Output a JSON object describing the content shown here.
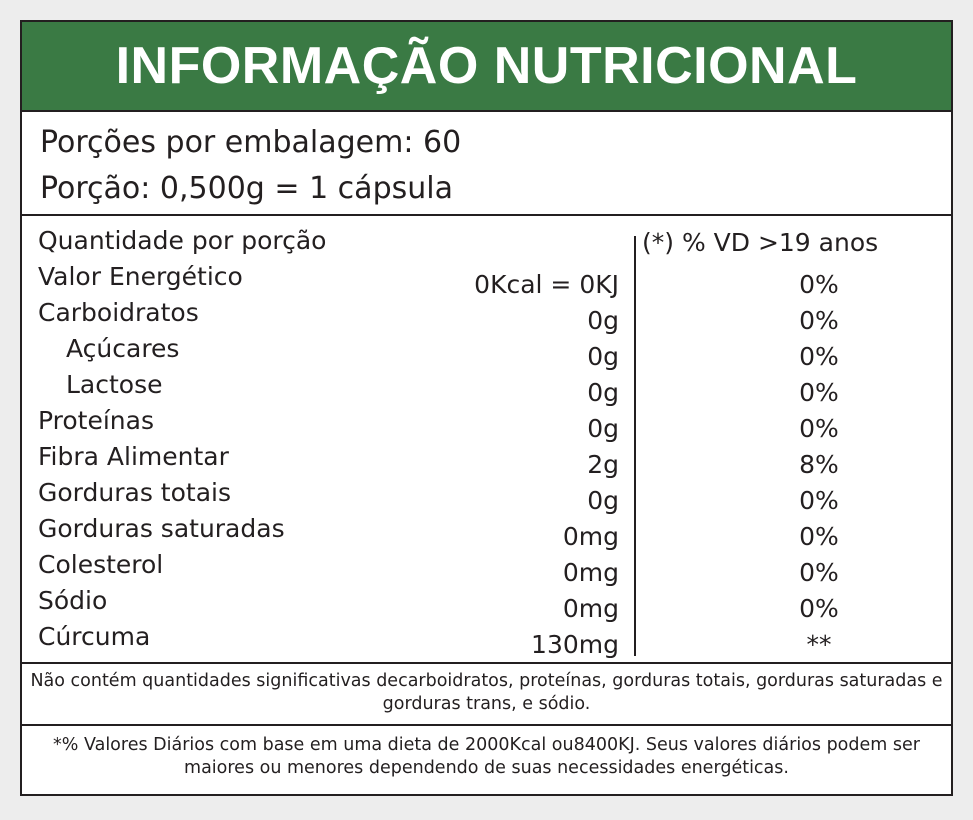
{
  "title": "INFORMAÇÃO NUTRICIONAL",
  "servings_per_package": "Porções por embalagem: 60",
  "serving_size": "Porção: 0,500g = 1 cápsula",
  "table_header": {
    "left": "Quantidade por porção",
    "right": "(*) % VD  >19 anos"
  },
  "rows": [
    {
      "name": "Valor Energético",
      "amount": "0Kcal = 0KJ",
      "vd": "0%"
    },
    {
      "name": "Carboidratos",
      "amount": "0g",
      "vd": "0%"
    },
    {
      "name": "Açúcares",
      "amount": "0g",
      "vd": "0%"
    },
    {
      "name": "Lactose",
      "amount": "0g",
      "vd": "0%"
    },
    {
      "name": "Proteínas",
      "amount": "0g",
      "vd": "0%"
    },
    {
      "name": "Fibra Alimentar",
      "amount": "2g",
      "vd": "8%"
    },
    {
      "name": "Gorduras totais",
      "amount": "0g",
      "vd": "0%"
    },
    {
      "name": "Gorduras saturadas",
      "amount": "0mg",
      "vd": "0%"
    },
    {
      "name": "Colesterol",
      "amount": "0mg",
      "vd": "0%"
    },
    {
      "name": "Sódio",
      "amount": "0mg",
      "vd": "0%"
    },
    {
      "name": "Cúrcuma",
      "amount": "130mg",
      "vd": "**"
    }
  ],
  "note_not_significant": "Não contém quantidades significativas decarboidratos, proteínas, gorduras totais, gorduras saturadas e gorduras trans, e sódio.",
  "note_daily_values": "*% Valores Diários com base em uma dieta de 2000Kcal ou8400KJ. Seus valores diários podem ser maiores ou menores dependendo de suas necessidades energéticas.",
  "colors": {
    "header_green": "#3a7a44",
    "text": "#231f20"
  }
}
